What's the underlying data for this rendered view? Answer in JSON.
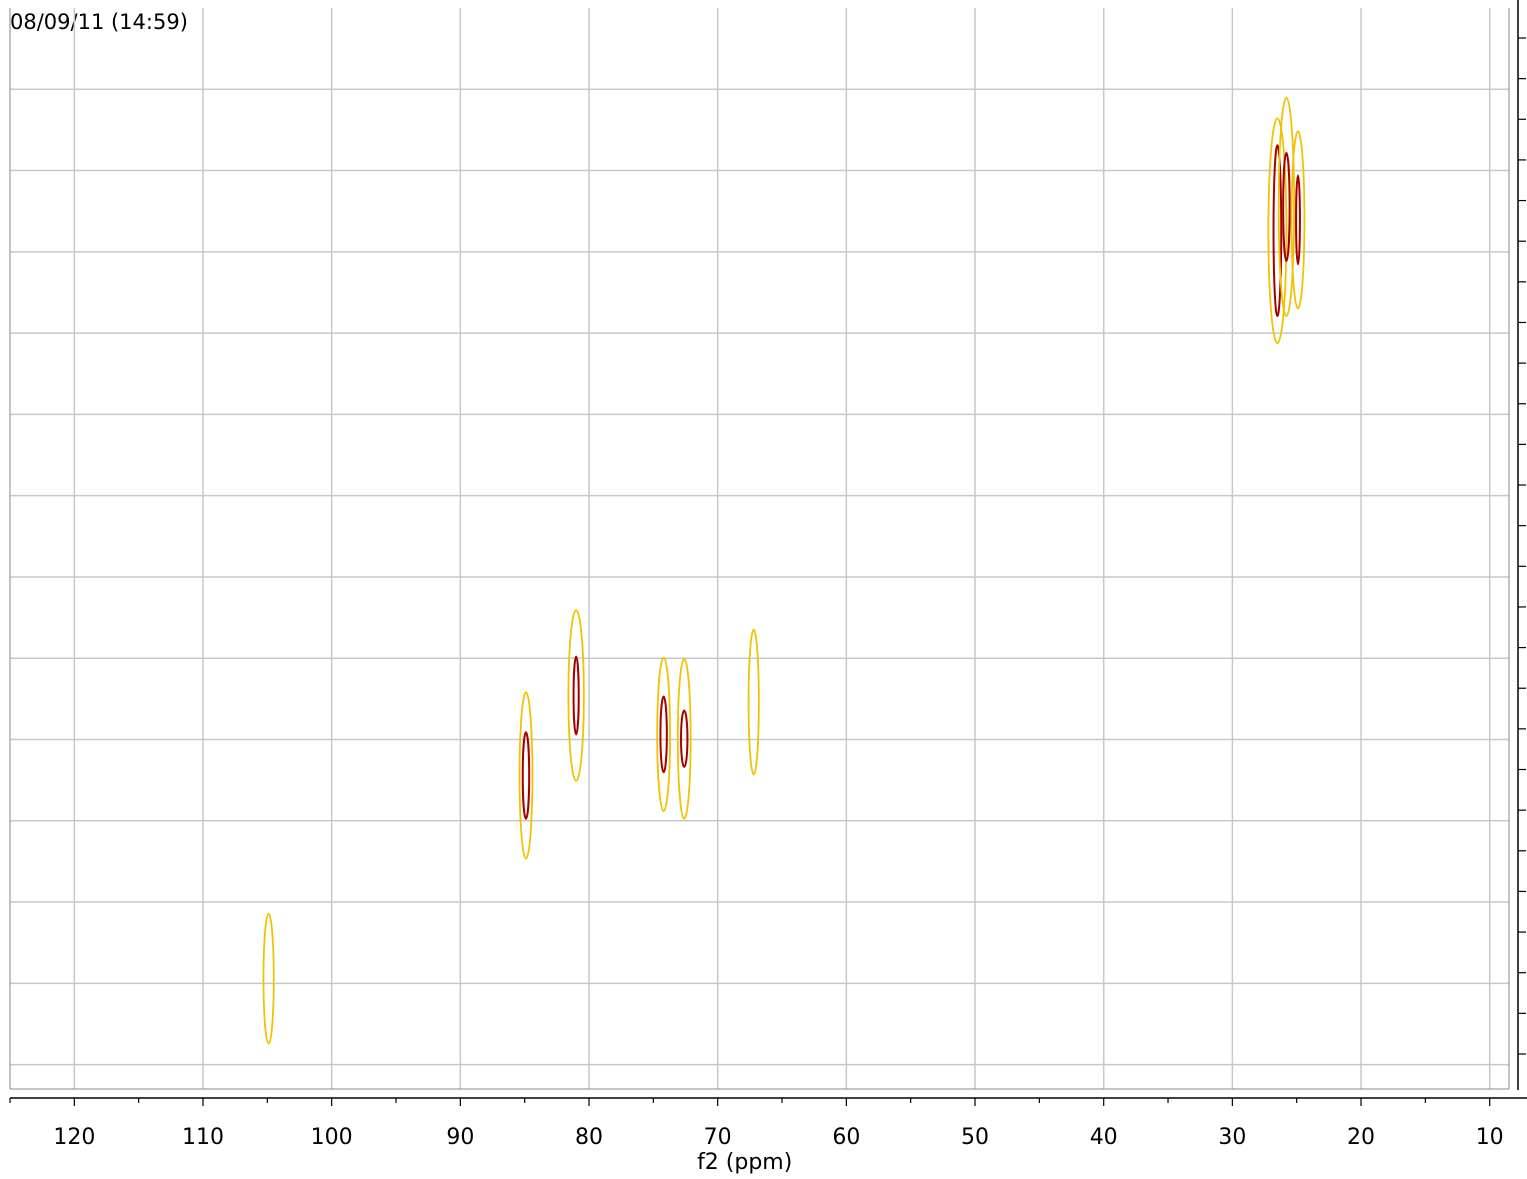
{
  "timestamp": "08/09/11  (14:59)",
  "chart_data": {
    "type": "contour",
    "xlabel": "f2 (ppm)",
    "x_reversed": true,
    "xlim": [
      125,
      8.5
    ],
    "x_ticks": [
      120,
      110,
      100,
      90,
      80,
      70,
      60,
      50,
      40,
      30,
      20,
      10
    ],
    "y_axis_position": "right",
    "y_tick_labels_shown": false,
    "grid": true,
    "colors": {
      "outer_contour": "#f2c200",
      "inner_contour": "#a50000",
      "grid": "#c8c8c8",
      "axis": "#000000"
    },
    "peaks": [
      {
        "f2": 104.9,
        "rel_y": 0.898,
        "outer": [
          0.4,
          0.12
        ],
        "inner": null
      },
      {
        "f2": 84.9,
        "rel_y": 0.71,
        "outer": [
          0.5,
          0.154
        ],
        "inner": [
          0.25,
          0.08
        ]
      },
      {
        "f2": 81.0,
        "rel_y": 0.636,
        "outer": [
          0.6,
          0.158
        ],
        "inner": [
          0.2,
          0.072
        ]
      },
      {
        "f2": 74.2,
        "rel_y": 0.672,
        "outer": [
          0.5,
          0.142
        ],
        "inner": [
          0.25,
          0.07
        ]
      },
      {
        "f2": 72.6,
        "rel_y": 0.676,
        "outer": [
          0.5,
          0.148
        ],
        "inner": [
          0.25,
          0.052
        ]
      },
      {
        "f2": 67.2,
        "rel_y": 0.642,
        "outer": [
          0.4,
          0.134
        ],
        "inner": null
      },
      {
        "f2": 26.5,
        "rel_y": 0.206,
        "outer": [
          0.7,
          0.208
        ],
        "inner": [
          0.3,
          0.158
        ]
      },
      {
        "f2": 25.8,
        "rel_y": 0.184,
        "outer": [
          0.6,
          0.202
        ],
        "inner": [
          0.25,
          0.1
        ]
      },
      {
        "f2": 24.9,
        "rel_y": 0.196,
        "outer": [
          0.5,
          0.164
        ],
        "inner": [
          0.15,
          0.082
        ]
      }
    ]
  }
}
